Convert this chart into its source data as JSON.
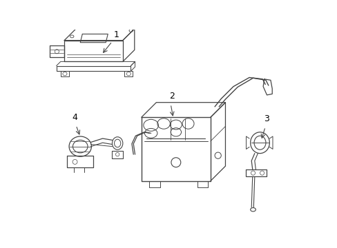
{
  "background_color": "#ffffff",
  "line_color": "#444444",
  "label_color": "#000000",
  "figsize": [
    4.89,
    3.6
  ],
  "dpi": 100
}
